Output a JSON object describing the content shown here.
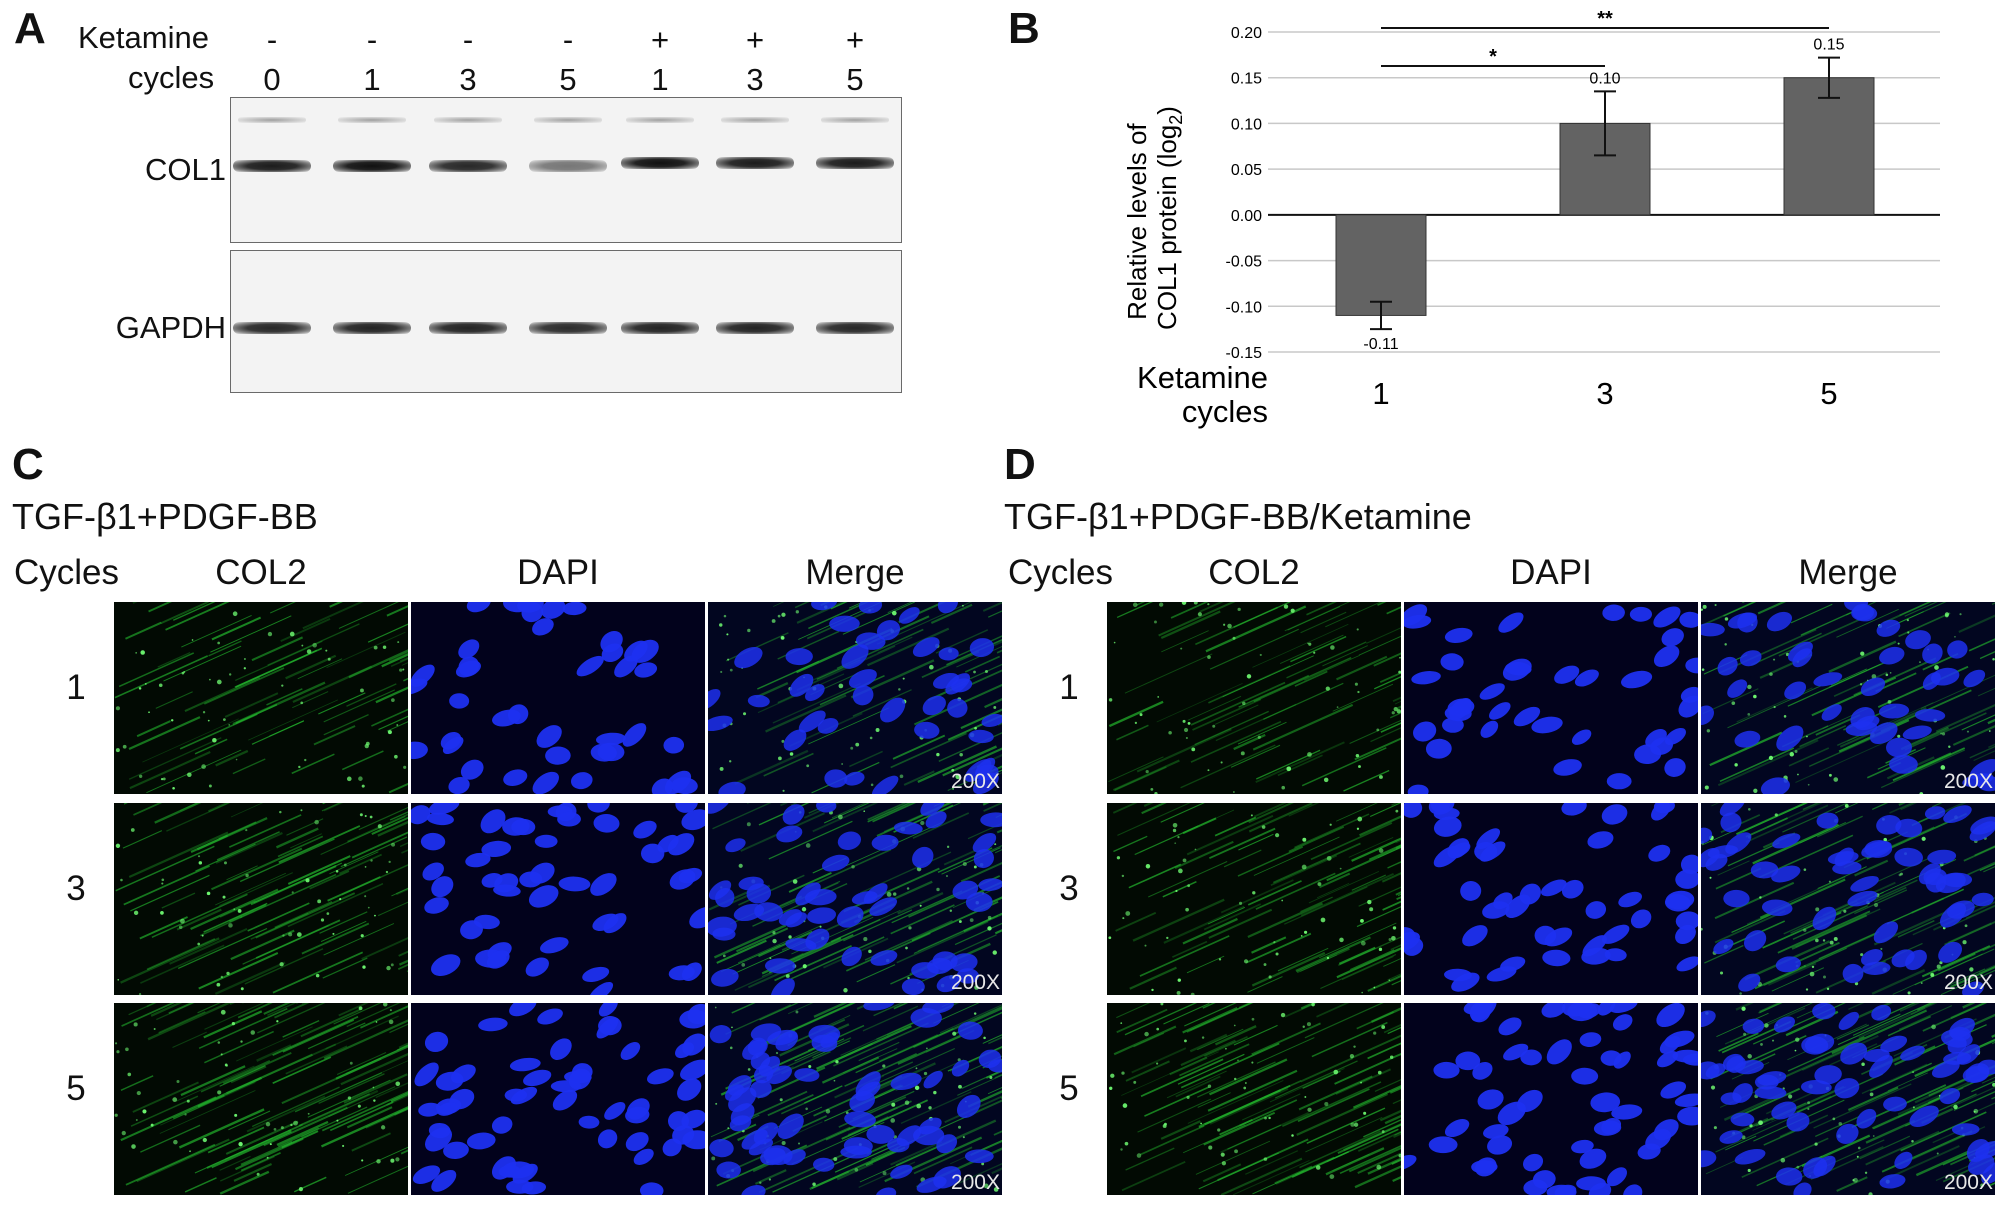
{
  "panelA": {
    "label": "A",
    "row_labels": {
      "ketamine": "Ketamine",
      "cycles": "cycles"
    },
    "lanes": [
      {
        "ketamine": "-",
        "cycles": "0"
      },
      {
        "ketamine": "-",
        "cycles": "1"
      },
      {
        "ketamine": "-",
        "cycles": "3"
      },
      {
        "ketamine": "-",
        "cycles": "5"
      },
      {
        "ketamine": "+",
        "cycles": "1"
      },
      {
        "ketamine": "+",
        "cycles": "3"
      },
      {
        "ketamine": "+",
        "cycles": "5"
      }
    ],
    "blots": [
      {
        "label": "COL1",
        "band_intensity": [
          0.95,
          1.0,
          0.9,
          0.55,
          1.0,
          0.95,
          0.95
        ]
      },
      {
        "label": "GAPDH",
        "band_intensity": [
          0.9,
          0.92,
          0.92,
          0.88,
          0.92,
          0.92,
          0.9
        ]
      }
    ]
  },
  "panelB": {
    "label": "B",
    "ylabel_line1": "Relative levels of",
    "ylabel_line2": "COL1 protein (log",
    "ylabel_sub": "2",
    "ylabel_close": ")",
    "xlabel_line1": "Ketamine",
    "xlabel_line2": "cycles",
    "sig_labels": [
      "*",
      "**"
    ],
    "colors": {
      "bar": "#636363",
      "grid": "#c8c8c8"
    }
  },
  "chart_data": {
    "type": "bar",
    "categories": [
      "1",
      "3",
      "5"
    ],
    "values": [
      -0.11,
      0.1,
      0.15
    ],
    "value_labels": [
      "-0.11",
      "0.10",
      "0.15"
    ],
    "error": [
      0.015,
      0.035,
      0.022
    ],
    "ylim": [
      -0.15,
      0.2
    ],
    "yticks": [
      "-0.15",
      "-0.10",
      "-0.05",
      "0.00",
      "0.05",
      "0.10",
      "0.15",
      "0.20"
    ],
    "ytick_values": [
      -0.15,
      -0.1,
      -0.05,
      0.0,
      0.05,
      0.1,
      0.15,
      0.2
    ],
    "grid": true,
    "significance": [
      {
        "from": "1",
        "to": "3",
        "label": "*"
      },
      {
        "from": "1",
        "to": "5",
        "label": "**"
      }
    ]
  },
  "panelC": {
    "label": "C",
    "title": "TGF-β1+PDGF-BB",
    "cycles_header": "Cycles",
    "columns": [
      "COL2",
      "DAPI",
      "Merge"
    ],
    "rows": [
      "1",
      "3",
      "5"
    ],
    "magnification": "200X"
  },
  "panelD": {
    "label": "D",
    "title": "TGF-β1+PDGF-BB/Ketamine",
    "cycles_header": "Cycles",
    "columns": [
      "COL2",
      "DAPI",
      "Merge"
    ],
    "rows": [
      "1",
      "3",
      "5"
    ],
    "magnification": "200X"
  },
  "colors": {
    "green": "#2fd33a",
    "blue": "#1c2ef2",
    "dark": "#020402"
  }
}
